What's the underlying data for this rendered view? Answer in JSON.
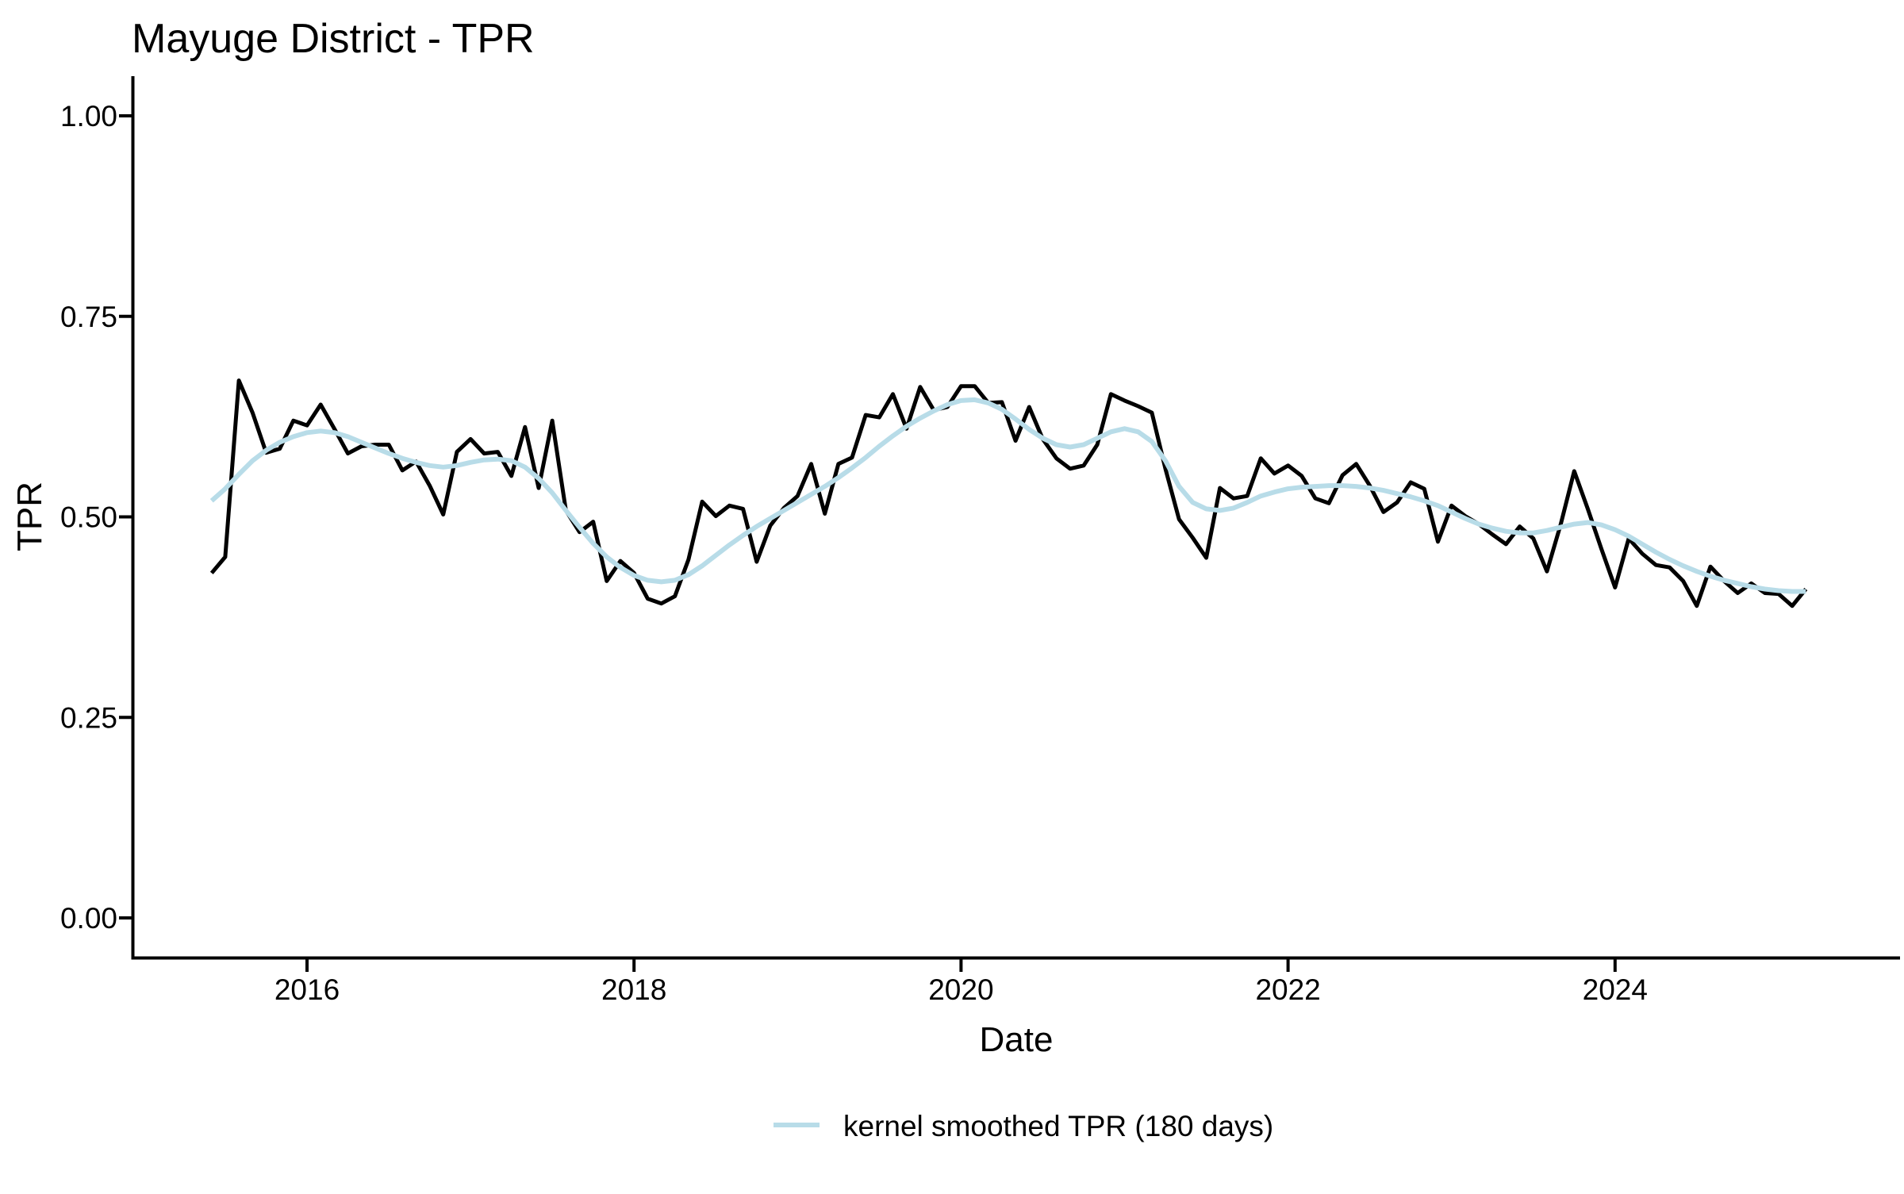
{
  "chart_data": {
    "type": "line",
    "title": "Mayuge District - TPR",
    "xlabel": "Date",
    "ylabel": "TPR",
    "x_ticks": [
      2016,
      2018,
      2020,
      2022,
      2024
    ],
    "y_ticks": [
      0.0,
      0.25,
      0.5,
      0.75,
      1.0
    ],
    "ylim": [
      0,
      1
    ],
    "xlim_years": [
      2014.93,
      2025.75
    ],
    "grid": "off",
    "legend_position": "bottom-center",
    "series": [
      {
        "name": "TPR",
        "color": "#000000",
        "start": "2015-06",
        "freq": "monthly",
        "values": [
          0.43,
          0.45,
          0.67,
          0.63,
          0.58,
          0.585,
          0.62,
          0.614,
          0.64,
          0.61,
          0.579,
          0.588,
          0.59,
          0.59,
          0.558,
          0.569,
          0.539,
          0.503,
          0.581,
          0.597,
          0.579,
          0.581,
          0.551,
          0.612,
          0.536,
          0.62,
          0.508,
          0.481,
          0.494,
          0.42,
          0.445,
          0.43,
          0.398,
          0.392,
          0.401,
          0.447,
          0.519,
          0.501,
          0.514,
          0.51,
          0.444,
          0.489,
          0.511,
          0.526,
          0.566,
          0.504,
          0.566,
          0.574,
          0.627,
          0.624,
          0.653,
          0.61,
          0.662,
          0.633,
          0.637,
          0.663,
          0.663,
          0.642,
          0.643,
          0.595,
          0.637,
          0.597,
          0.573,
          0.56,
          0.564,
          0.59,
          0.653,
          0.645,
          0.638,
          0.63,
          0.56,
          0.497,
          0.474,
          0.449,
          0.536,
          0.523,
          0.526,
          0.573,
          0.554,
          0.564,
          0.551,
          0.523,
          0.517,
          0.552,
          0.566,
          0.539,
          0.506,
          0.518,
          0.543,
          0.535,
          0.469,
          0.514,
          0.501,
          0.491,
          0.478,
          0.466,
          0.488,
          0.473,
          0.432,
          0.49,
          0.557,
          0.51,
          0.46,
          0.412,
          0.473,
          0.454,
          0.44,
          0.437,
          0.42,
          0.389,
          0.438,
          0.42,
          0.405,
          0.417,
          0.405,
          0.404,
          0.389,
          0.41
        ]
      },
      {
        "name": "kernel smoothed TPR (180 days)",
        "color": "#B8DCE8",
        "start": "2015-06",
        "freq": "monthly",
        "values": [
          0.52,
          0.535,
          0.553,
          0.57,
          0.583,
          0.593,
          0.6,
          0.605,
          0.607,
          0.605,
          0.6,
          0.593,
          0.586,
          0.579,
          0.573,
          0.568,
          0.564,
          0.562,
          0.564,
          0.568,
          0.571,
          0.572,
          0.57,
          0.562,
          0.548,
          0.53,
          0.508,
          0.487,
          0.467,
          0.45,
          0.437,
          0.427,
          0.421,
          0.419,
          0.421,
          0.428,
          0.439,
          0.452,
          0.465,
          0.477,
          0.488,
          0.498,
          0.508,
          0.518,
          0.528,
          0.538,
          0.549,
          0.561,
          0.574,
          0.588,
          0.601,
          0.613,
          0.623,
          0.632,
          0.64,
          0.645,
          0.646,
          0.642,
          0.634,
          0.622,
          0.609,
          0.598,
          0.59,
          0.587,
          0.59,
          0.598,
          0.606,
          0.61,
          0.606,
          0.594,
          0.57,
          0.538,
          0.518,
          0.51,
          0.508,
          0.511,
          0.518,
          0.526,
          0.531,
          0.535,
          0.537,
          0.538,
          0.539,
          0.539,
          0.538,
          0.536,
          0.533,
          0.529,
          0.525,
          0.52,
          0.514,
          0.506,
          0.498,
          0.491,
          0.486,
          0.482,
          0.48,
          0.48,
          0.483,
          0.487,
          0.491,
          0.493,
          0.49,
          0.484,
          0.476,
          0.466,
          0.456,
          0.447,
          0.439,
          0.432,
          0.426,
          0.421,
          0.417,
          0.413,
          0.41,
          0.408,
          0.407,
          0.407
        ]
      }
    ],
    "legend": [
      {
        "label": "kernel smoothed TPR (180 days)",
        "color": "#B8DCE8"
      }
    ]
  }
}
